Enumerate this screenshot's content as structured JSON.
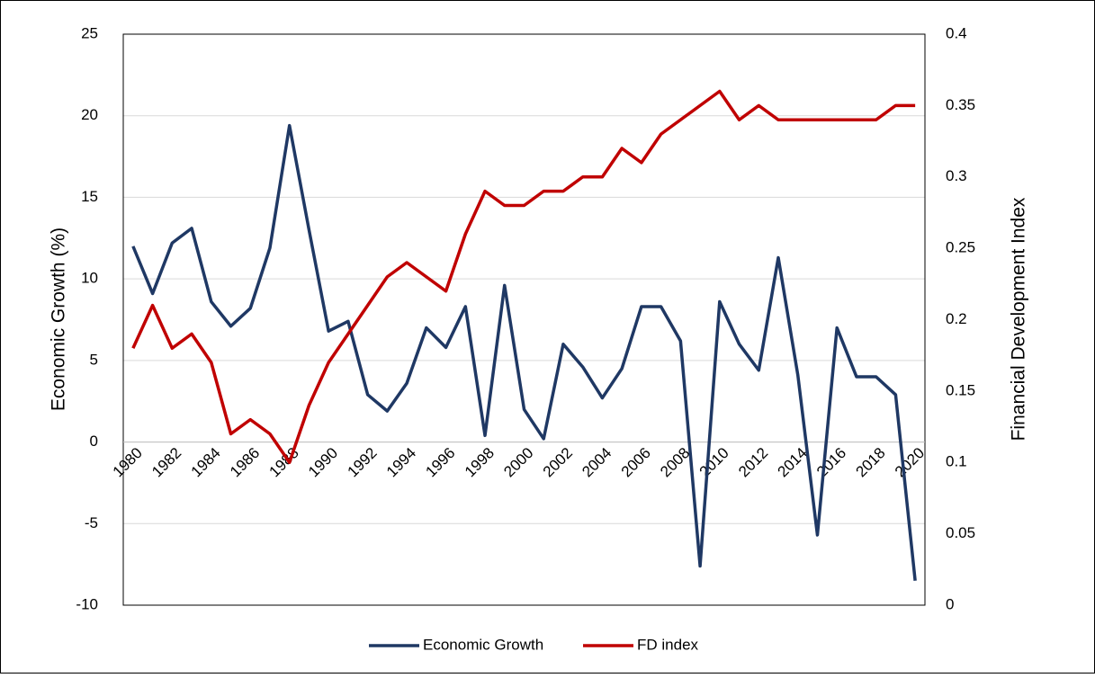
{
  "chart_data": {
    "type": "line",
    "y_label": "Economic Growth (%)",
    "y2_label": "Financial Development Index",
    "categories": [
      "1980",
      null,
      "1982",
      null,
      "1984",
      null,
      "1986",
      null,
      "1988",
      null,
      "1990",
      null,
      "1992",
      null,
      "1994",
      null,
      "1996",
      null,
      "1998",
      null,
      "2000",
      null,
      "2002",
      null,
      "2004",
      null,
      "2006",
      null,
      "2008",
      null,
      "2010",
      null,
      "2012",
      null,
      "2014",
      null,
      "2016",
      null,
      "2018",
      null,
      "2020"
    ],
    "series": [
      {
        "name": "Economic Growth",
        "color": "#1f3864",
        "axis": "y",
        "values": [
          12.0,
          9.1,
          12.2,
          13.1,
          8.6,
          7.1,
          8.2,
          11.9,
          19.4,
          13.0,
          6.8,
          7.4,
          2.9,
          1.9,
          3.6,
          7.0,
          5.8,
          8.3,
          0.4,
          9.6,
          2.0,
          0.2,
          6.0,
          4.6,
          2.7,
          4.5,
          8.3,
          8.3,
          6.2,
          -7.6,
          8.6,
          6.0,
          4.4,
          11.3,
          4.1,
          -5.7,
          7.0,
          4.0,
          4.0,
          2.9,
          -8.5
        ]
      },
      {
        "name": "FD index",
        "color": "#c00000",
        "axis": "y2",
        "values": [
          0.18,
          0.21,
          0.18,
          0.19,
          0.17,
          0.12,
          0.13,
          0.12,
          0.1,
          0.14,
          0.17,
          0.19,
          0.21,
          0.23,
          0.24,
          0.23,
          0.22,
          0.26,
          0.29,
          0.28,
          0.28,
          0.29,
          0.29,
          0.3,
          0.3,
          0.32,
          0.31,
          0.33,
          0.34,
          0.35,
          0.36,
          0.34,
          0.35,
          0.34,
          0.34,
          0.34,
          0.34,
          0.34,
          0.34,
          0.35,
          0.35
        ]
      }
    ],
    "ylim": [
      -10,
      25
    ],
    "yticks": [
      -10,
      -5,
      0,
      5,
      10,
      15,
      20,
      25
    ],
    "y2lim": [
      0,
      0.4
    ],
    "y2ticks": [
      0,
      0.05,
      0.1,
      0.15,
      0.2,
      0.25,
      0.3,
      0.35,
      0.4
    ],
    "grid": true,
    "legend": "bottom"
  }
}
